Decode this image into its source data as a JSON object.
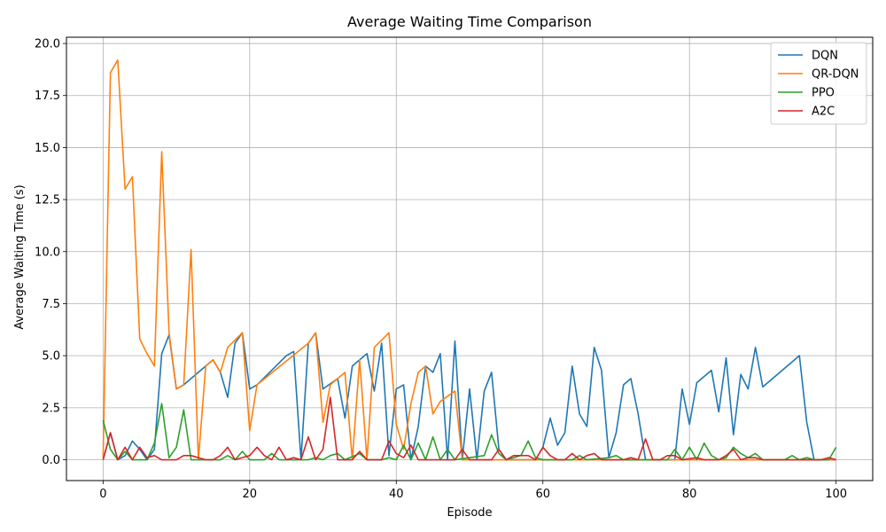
{
  "chart_data": {
    "type": "line",
    "title": "Average Waiting Time Comparison",
    "xlabel": "Episode",
    "ylabel": "Average Waiting Time (s)",
    "xlim": [
      -5,
      105
    ],
    "ylim": [
      -1.0,
      20.3
    ],
    "xticks": [
      0,
      20,
      40,
      60,
      80,
      100
    ],
    "xtick_labels": [
      "0",
      "20",
      "40",
      "60",
      "80",
      "100"
    ],
    "yticks": [
      0,
      2.5,
      5,
      7.5,
      10,
      12.5,
      15,
      17.5,
      20
    ],
    "ytick_labels": [
      "0.0",
      "2.5",
      "5.0",
      "7.5",
      "10.0",
      "12.5",
      "15.0",
      "17.5",
      "20.0"
    ],
    "grid": true,
    "legend_position": "top-right",
    "colors": {
      "DQN": "#1f77b4",
      "QR-DQN": "#ff7f0e",
      "PPO": "#2ca02c",
      "A2C": "#d62728"
    },
    "series": [
      {
        "name": "DQN",
        "points": [
          [
            0,
            0
          ],
          [
            1,
            1.3
          ],
          [
            2,
            0
          ],
          [
            3,
            0.2
          ],
          [
            4,
            0.9
          ],
          [
            5,
            0.5
          ],
          [
            6,
            0
          ],
          [
            7,
            0.5
          ],
          [
            8,
            5.1
          ],
          [
            9,
            6.0
          ],
          [
            10,
            3.4
          ],
          [
            11,
            3.6
          ],
          [
            14,
            4.5
          ],
          [
            15,
            4.8
          ],
          [
            16,
            4.2
          ],
          [
            17,
            3.0
          ],
          [
            18,
            5.6
          ],
          [
            19,
            6.1
          ],
          [
            20,
            3.4
          ],
          [
            21,
            3.6
          ],
          [
            25,
            5.0
          ],
          [
            26,
            5.2
          ],
          [
            27,
            0
          ],
          [
            28,
            5.6
          ],
          [
            29,
            6.1
          ],
          [
            30,
            3.4
          ],
          [
            32,
            3.9
          ],
          [
            33,
            2.0
          ],
          [
            34,
            4.5
          ],
          [
            35,
            4.8
          ],
          [
            36,
            5.1
          ],
          [
            37,
            3.3
          ],
          [
            38,
            5.6
          ],
          [
            39,
            0.2
          ],
          [
            40,
            3.4
          ],
          [
            41,
            3.6
          ],
          [
            42,
            0
          ],
          [
            43,
            1.6
          ],
          [
            44,
            4.5
          ],
          [
            45,
            4.2
          ],
          [
            46,
            5.1
          ],
          [
            47,
            0
          ],
          [
            48,
            5.7
          ],
          [
            49,
            0
          ],
          [
            50,
            3.4
          ],
          [
            51,
            0
          ],
          [
            52,
            3.3
          ],
          [
            53,
            4.2
          ],
          [
            54,
            0.5
          ],
          [
            55,
            0
          ],
          [
            59,
            0
          ],
          [
            60,
            0.6
          ],
          [
            61,
            2.0
          ],
          [
            62,
            0.7
          ],
          [
            63,
            1.3
          ],
          [
            64,
            4.5
          ],
          [
            65,
            2.2
          ],
          [
            66,
            1.6
          ],
          [
            67,
            5.4
          ],
          [
            68,
            4.3
          ],
          [
            69,
            0.1
          ],
          [
            70,
            1.3
          ],
          [
            71,
            3.6
          ],
          [
            72,
            3.9
          ],
          [
            73,
            2.2
          ],
          [
            74,
            0
          ],
          [
            78,
            0
          ],
          [
            79,
            3.4
          ],
          [
            80,
            1.7
          ],
          [
            81,
            3.7
          ],
          [
            83,
            4.3
          ],
          [
            84,
            2.3
          ],
          [
            85,
            4.9
          ],
          [
            86,
            1.2
          ],
          [
            87,
            4.1
          ],
          [
            88,
            3.4
          ],
          [
            89,
            5.4
          ],
          [
            90,
            3.5
          ],
          [
            95,
            5.0
          ],
          [
            96,
            1.8
          ],
          [
            97,
            0
          ],
          [
            100,
            0
          ]
        ]
      },
      {
        "name": "QR-DQN",
        "points": [
          [
            0,
            0.1
          ],
          [
            1,
            18.6
          ],
          [
            2,
            19.2
          ],
          [
            3,
            13.0
          ],
          [
            4,
            13.6
          ],
          [
            5,
            5.8
          ],
          [
            6,
            5.1
          ],
          [
            7,
            4.5
          ],
          [
            8,
            14.8
          ],
          [
            9,
            6.1
          ],
          [
            10,
            3.4
          ],
          [
            11,
            3.6
          ],
          [
            12,
            10.1
          ],
          [
            13,
            0
          ],
          [
            14,
            4.5
          ],
          [
            15,
            4.8
          ],
          [
            16,
            4.2
          ],
          [
            17,
            5.4
          ],
          [
            19,
            6.1
          ],
          [
            20,
            1.4
          ],
          [
            21,
            3.6
          ],
          [
            28,
            5.6
          ],
          [
            29,
            6.1
          ],
          [
            30,
            1.8
          ],
          [
            31,
            3.6
          ],
          [
            33,
            4.2
          ],
          [
            34,
            0
          ],
          [
            35,
            4.8
          ],
          [
            36,
            0
          ],
          [
            37,
            5.4
          ],
          [
            39,
            6.1
          ],
          [
            40,
            1.7
          ],
          [
            41,
            0.5
          ],
          [
            42,
            2.7
          ],
          [
            43,
            4.2
          ],
          [
            44,
            4.5
          ],
          [
            45,
            2.2
          ],
          [
            46,
            2.8
          ],
          [
            48,
            3.3
          ],
          [
            49,
            0
          ],
          [
            100,
            0
          ]
        ]
      },
      {
        "name": "PPO",
        "points": [
          [
            0,
            1.9
          ],
          [
            1,
            0.5
          ],
          [
            2,
            0
          ],
          [
            3,
            0.4
          ],
          [
            4,
            0
          ],
          [
            6,
            0
          ],
          [
            7,
            0.8
          ],
          [
            8,
            2.7
          ],
          [
            9,
            0.1
          ],
          [
            10,
            0.6
          ],
          [
            11,
            2.4
          ],
          [
            12,
            0
          ],
          [
            16,
            0
          ],
          [
            17,
            0.2
          ],
          [
            18,
            0
          ],
          [
            19,
            0.4
          ],
          [
            20,
            0
          ],
          [
            22,
            0
          ],
          [
            23,
            0.3
          ],
          [
            24,
            0
          ],
          [
            28,
            0
          ],
          [
            29,
            0.1
          ],
          [
            30,
            0
          ],
          [
            31,
            0.2
          ],
          [
            32,
            0.3
          ],
          [
            33,
            0
          ],
          [
            35,
            0.3
          ],
          [
            36,
            0
          ],
          [
            38,
            0
          ],
          [
            39,
            0.1
          ],
          [
            40,
            0
          ],
          [
            41,
            0.7
          ],
          [
            42,
            0
          ],
          [
            43,
            0.8
          ],
          [
            44,
            0
          ],
          [
            45,
            1.1
          ],
          [
            46,
            0
          ],
          [
            47,
            0.5
          ],
          [
            48,
            0
          ],
          [
            52,
            0.2
          ],
          [
            53,
            1.2
          ],
          [
            54,
            0.3
          ],
          [
            55,
            0
          ],
          [
            57,
            0.2
          ],
          [
            58,
            0.9
          ],
          [
            59,
            0.1
          ],
          [
            60,
            0
          ],
          [
            64,
            0
          ],
          [
            65,
            0.2
          ],
          [
            66,
            0
          ],
          [
            69,
            0.1
          ],
          [
            70,
            0.2
          ],
          [
            71,
            0
          ],
          [
            77,
            0
          ],
          [
            78,
            0.5
          ],
          [
            79,
            0
          ],
          [
            80,
            0.6
          ],
          [
            81,
            0
          ],
          [
            82,
            0.8
          ],
          [
            83,
            0.2
          ],
          [
            84,
            0
          ],
          [
            85,
            0.1
          ],
          [
            86,
            0.6
          ],
          [
            87,
            0.3
          ],
          [
            88,
            0.1
          ],
          [
            89,
            0.3
          ],
          [
            90,
            0
          ],
          [
            93,
            0
          ],
          [
            94,
            0.2
          ],
          [
            95,
            0
          ],
          [
            96,
            0.1
          ],
          [
            97,
            0
          ],
          [
            99,
            0
          ],
          [
            100,
            0.6
          ]
        ]
      },
      {
        "name": "A2C",
        "points": [
          [
            0,
            0
          ],
          [
            1,
            1.3
          ],
          [
            2,
            0
          ],
          [
            3,
            0.6
          ],
          [
            4,
            0
          ],
          [
            5,
            0.6
          ],
          [
            6,
            0.1
          ],
          [
            7,
            0.2
          ],
          [
            8,
            0
          ],
          [
            10,
            0
          ],
          [
            11,
            0.2
          ],
          [
            12,
            0.2
          ],
          [
            13,
            0.1
          ],
          [
            14,
            0
          ],
          [
            15,
            0
          ],
          [
            16,
            0.2
          ],
          [
            17,
            0.6
          ],
          [
            18,
            0
          ],
          [
            20,
            0.2
          ],
          [
            21,
            0.6
          ],
          [
            22,
            0.2
          ],
          [
            23,
            0
          ],
          [
            24,
            0.6
          ],
          [
            25,
            0
          ],
          [
            26,
            0.1
          ],
          [
            27,
            0
          ],
          [
            28,
            1.1
          ],
          [
            29,
            0
          ],
          [
            30,
            0.5
          ],
          [
            31,
            3.0
          ],
          [
            32,
            0
          ],
          [
            34,
            0
          ],
          [
            35,
            0.4
          ],
          [
            36,
            0
          ],
          [
            38,
            0
          ],
          [
            39,
            0.9
          ],
          [
            40,
            0.3
          ],
          [
            41,
            0.1
          ],
          [
            42,
            0.7
          ],
          [
            43,
            0
          ],
          [
            48,
            0
          ],
          [
            49,
            0.5
          ],
          [
            50,
            0
          ],
          [
            53,
            0
          ],
          [
            54,
            0.5
          ],
          [
            55,
            0
          ],
          [
            56,
            0.2
          ],
          [
            58,
            0.2
          ],
          [
            59,
            0
          ],
          [
            60,
            0.6
          ],
          [
            61,
            0.2
          ],
          [
            62,
            0
          ],
          [
            63,
            0
          ],
          [
            64,
            0.3
          ],
          [
            65,
            0
          ],
          [
            66,
            0.2
          ],
          [
            67,
            0.3
          ],
          [
            68,
            0
          ],
          [
            71,
            0
          ],
          [
            72,
            0.1
          ],
          [
            73,
            0
          ],
          [
            74,
            1.0
          ],
          [
            75,
            0
          ],
          [
            76,
            0
          ],
          [
            77,
            0.2
          ],
          [
            78,
            0.2
          ],
          [
            79,
            0
          ],
          [
            81,
            0.1
          ],
          [
            82,
            0
          ],
          [
            84,
            0
          ],
          [
            85,
            0.2
          ],
          [
            86,
            0.5
          ],
          [
            87,
            0
          ],
          [
            88,
            0.1
          ],
          [
            89,
            0.1
          ],
          [
            90,
            0
          ],
          [
            98,
            0
          ],
          [
            99,
            0.1
          ],
          [
            100,
            0
          ]
        ]
      }
    ]
  }
}
